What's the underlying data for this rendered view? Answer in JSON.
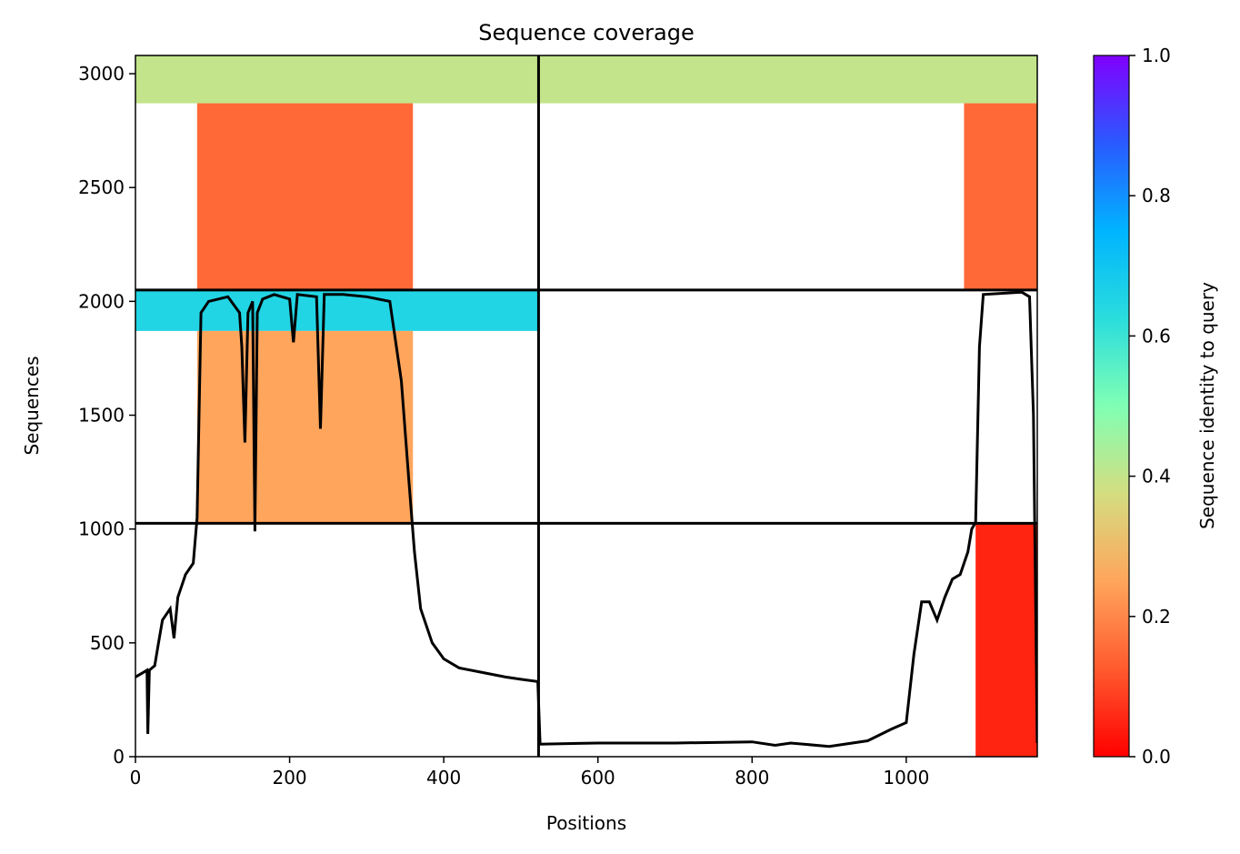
{
  "chart_data": {
    "type": "heatmap",
    "title": "Sequence coverage",
    "xlabel": "Positions",
    "ylabel": "Sequences",
    "colorbar_label": "Sequence identity to query",
    "xlim": [
      0,
      1170
    ],
    "ylim": [
      0,
      3080
    ],
    "xticks": [
      0,
      200,
      400,
      600,
      800,
      1000
    ],
    "yticks": [
      0,
      500,
      1000,
      1500,
      2000,
      2500,
      3000
    ],
    "colorbar_ticks": [
      "0.0",
      "0.2",
      "0.4",
      "0.6",
      "0.8",
      "1.0"
    ],
    "colormap": "rainbow_r",
    "chain_boundaries_x": [
      523
    ],
    "chain_boundaries_y": [
      1025,
      2050
    ],
    "blocks": [
      {
        "rows": [
          2870,
          3080
        ],
        "x": [
          0,
          523
        ],
        "identity": 0.4
      },
      {
        "rows": [
          2050,
          2870
        ],
        "x": [
          80,
          360
        ],
        "identity": 0.15
      },
      {
        "rows": [
          1870,
          2050
        ],
        "x": [
          0,
          523
        ],
        "identity": 0.65
      },
      {
        "rows": [
          1025,
          1870
        ],
        "x": [
          80,
          360
        ],
        "identity": 0.25
      },
      {
        "rows": [
          2870,
          3080
        ],
        "x": [
          523,
          1170
        ],
        "identity": 0.4
      },
      {
        "rows": [
          2050,
          2870
        ],
        "x": [
          1075,
          1170
        ],
        "identity": 0.15
      },
      {
        "rows": [
          0,
          1025
        ],
        "x": [
          1090,
          1170
        ],
        "identity": 0.05
      }
    ],
    "coverage_line": [
      [
        0,
        350
      ],
      [
        10,
        370
      ],
      [
        15,
        380
      ],
      [
        16,
        100
      ],
      [
        18,
        380
      ],
      [
        25,
        400
      ],
      [
        30,
        500
      ],
      [
        35,
        600
      ],
      [
        45,
        650
      ],
      [
        50,
        520
      ],
      [
        55,
        700
      ],
      [
        65,
        800
      ],
      [
        75,
        850
      ],
      [
        80,
        1050
      ],
      [
        85,
        1950
      ],
      [
        95,
        2000
      ],
      [
        120,
        2020
      ],
      [
        135,
        1950
      ],
      [
        138,
        1800
      ],
      [
        142,
        1380
      ],
      [
        146,
        1950
      ],
      [
        152,
        2000
      ],
      [
        155,
        990
      ],
      [
        158,
        1950
      ],
      [
        165,
        2010
      ],
      [
        180,
        2030
      ],
      [
        200,
        2010
      ],
      [
        205,
        1820
      ],
      [
        210,
        2030
      ],
      [
        235,
        2020
      ],
      [
        240,
        1440
      ],
      [
        245,
        2030
      ],
      [
        270,
        2030
      ],
      [
        300,
        2020
      ],
      [
        330,
        2000
      ],
      [
        345,
        1650
      ],
      [
        355,
        1200
      ],
      [
        362,
        900
      ],
      [
        370,
        650
      ],
      [
        385,
        500
      ],
      [
        400,
        430
      ],
      [
        420,
        390
      ],
      [
        450,
        370
      ],
      [
        480,
        350
      ],
      [
        500,
        340
      ],
      [
        522,
        330
      ],
      [
        525,
        55
      ],
      [
        600,
        60
      ],
      [
        700,
        60
      ],
      [
        800,
        65
      ],
      [
        830,
        50
      ],
      [
        850,
        60
      ],
      [
        900,
        45
      ],
      [
        950,
        70
      ],
      [
        980,
        120
      ],
      [
        1000,
        150
      ],
      [
        1010,
        450
      ],
      [
        1020,
        680
      ],
      [
        1030,
        680
      ],
      [
        1040,
        600
      ],
      [
        1050,
        700
      ],
      [
        1060,
        780
      ],
      [
        1070,
        800
      ],
      [
        1080,
        900
      ],
      [
        1085,
        1000
      ],
      [
        1090,
        1030
      ],
      [
        1095,
        1800
      ],
      [
        1100,
        2030
      ],
      [
        1150,
        2040
      ],
      [
        1160,
        2020
      ],
      [
        1165,
        1500
      ],
      [
        1170,
        60
      ]
    ]
  }
}
